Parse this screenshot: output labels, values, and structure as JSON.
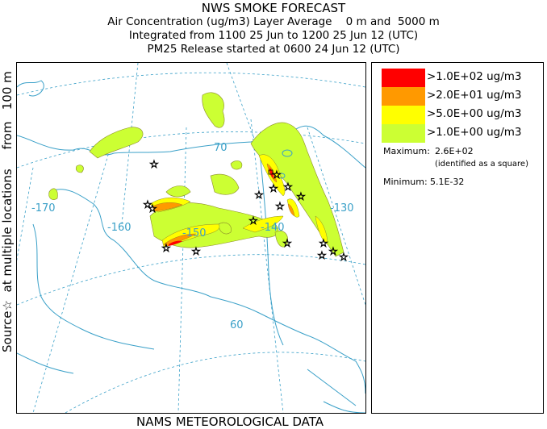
{
  "header": {
    "title": "NWS SMOKE FORECAST",
    "line2": "Air Concentration (ug/m3) Layer Average    0 m and  5000 m",
    "line3": "Integrated from 1100 25 Jun to 1200 25 Jun 12 (UTC)",
    "line4": "PM25 Release started at 0600 24 Jun 12 (UTC)"
  },
  "side_label": "Source☆  at multiple locations     from   100 m",
  "footer": "NAMS METEOROLOGICAL DATA",
  "map": {
    "longitude_labels": [
      "-170",
      "-160",
      "-150",
      "-140",
      "-130"
    ],
    "latitude_labels": [
      "70",
      "60"
    ],
    "colors": {
      "water_lines": "#3aa0c8",
      "grid": "#3aa0c8"
    }
  },
  "legend": {
    "items": [
      {
        "label": ">1.0E+02 ug/m3",
        "color": "#ff0000"
      },
      {
        "label": ">2.0E+01 ug/m3",
        "color": "#ff9900"
      },
      {
        "label": ">5.0E+00 ug/m3",
        "color": "#ffff00"
      },
      {
        "label": ">1.0E+00 ug/m3",
        "color": "#ccff33"
      }
    ],
    "maximum_label": "Maximum:",
    "maximum_value": "2.6E+02",
    "maximum_note": "(identified as a square)",
    "minimum_label": "Minimum:",
    "minimum_value": "5.1E-32"
  }
}
